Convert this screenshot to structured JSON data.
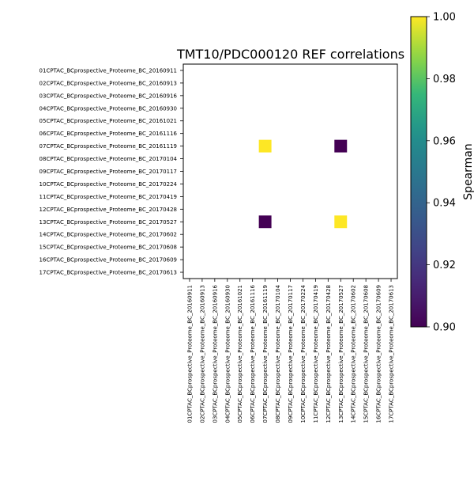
{
  "chart_data": {
    "type": "heatmap",
    "title": "TMT10/PDC000120 REF correlations",
    "xlabel": "",
    "ylabel": "",
    "categories": [
      "01CPTAC_BCprospective_Proteome_BC_20160911",
      "02CPTAC_BCprospective_Proteome_BC_20160913",
      "03CPTAC_BCprospective_Proteome_BC_20160916",
      "04CPTAC_BCprospective_Proteome_BC_20160930",
      "05CPTAC_BCprospective_Proteome_BC_20161021",
      "06CPTAC_BCprospective_Proteome_BC_20161116",
      "07CPTAC_BCprospective_Proteome_BC_20161119",
      "08CPTAC_BCprospective_Proteome_BC_20170104",
      "09CPTAC_BCprospective_Proteome_BC_20170117",
      "10CPTAC_BCprospective_Proteome_BC_20170224",
      "11CPTAC_BCprospective_Proteome_BC_20170419",
      "12CPTAC_BCprospective_Proteome_BC_20170428",
      "13CPTAC_BCprospective_Proteome_BC_20170527",
      "14CPTAC_BCprospective_Proteome_BC_20170602",
      "15CPTAC_BCprospective_Proteome_BC_20170608",
      "16CPTAC_BCprospective_Proteome_BC_20170609",
      "17CPTAC_BCprospective_Proteome_BC_20170613"
    ],
    "cells": [
      {
        "row": 6,
        "col": 6,
        "value": 1.0
      },
      {
        "row": 6,
        "col": 12,
        "value": 0.9
      },
      {
        "row": 12,
        "col": 6,
        "value": 0.9
      },
      {
        "row": 12,
        "col": 12,
        "value": 1.0
      }
    ],
    "colorbar": {
      "label": "Spearman",
      "range": [
        0.9,
        1.0
      ],
      "ticks": [
        "0.90",
        "0.92",
        "0.94",
        "0.96",
        "0.98",
        "1.00"
      ],
      "colormap": "viridis",
      "low_color": "#440154",
      "high_color": "#fde725"
    }
  }
}
